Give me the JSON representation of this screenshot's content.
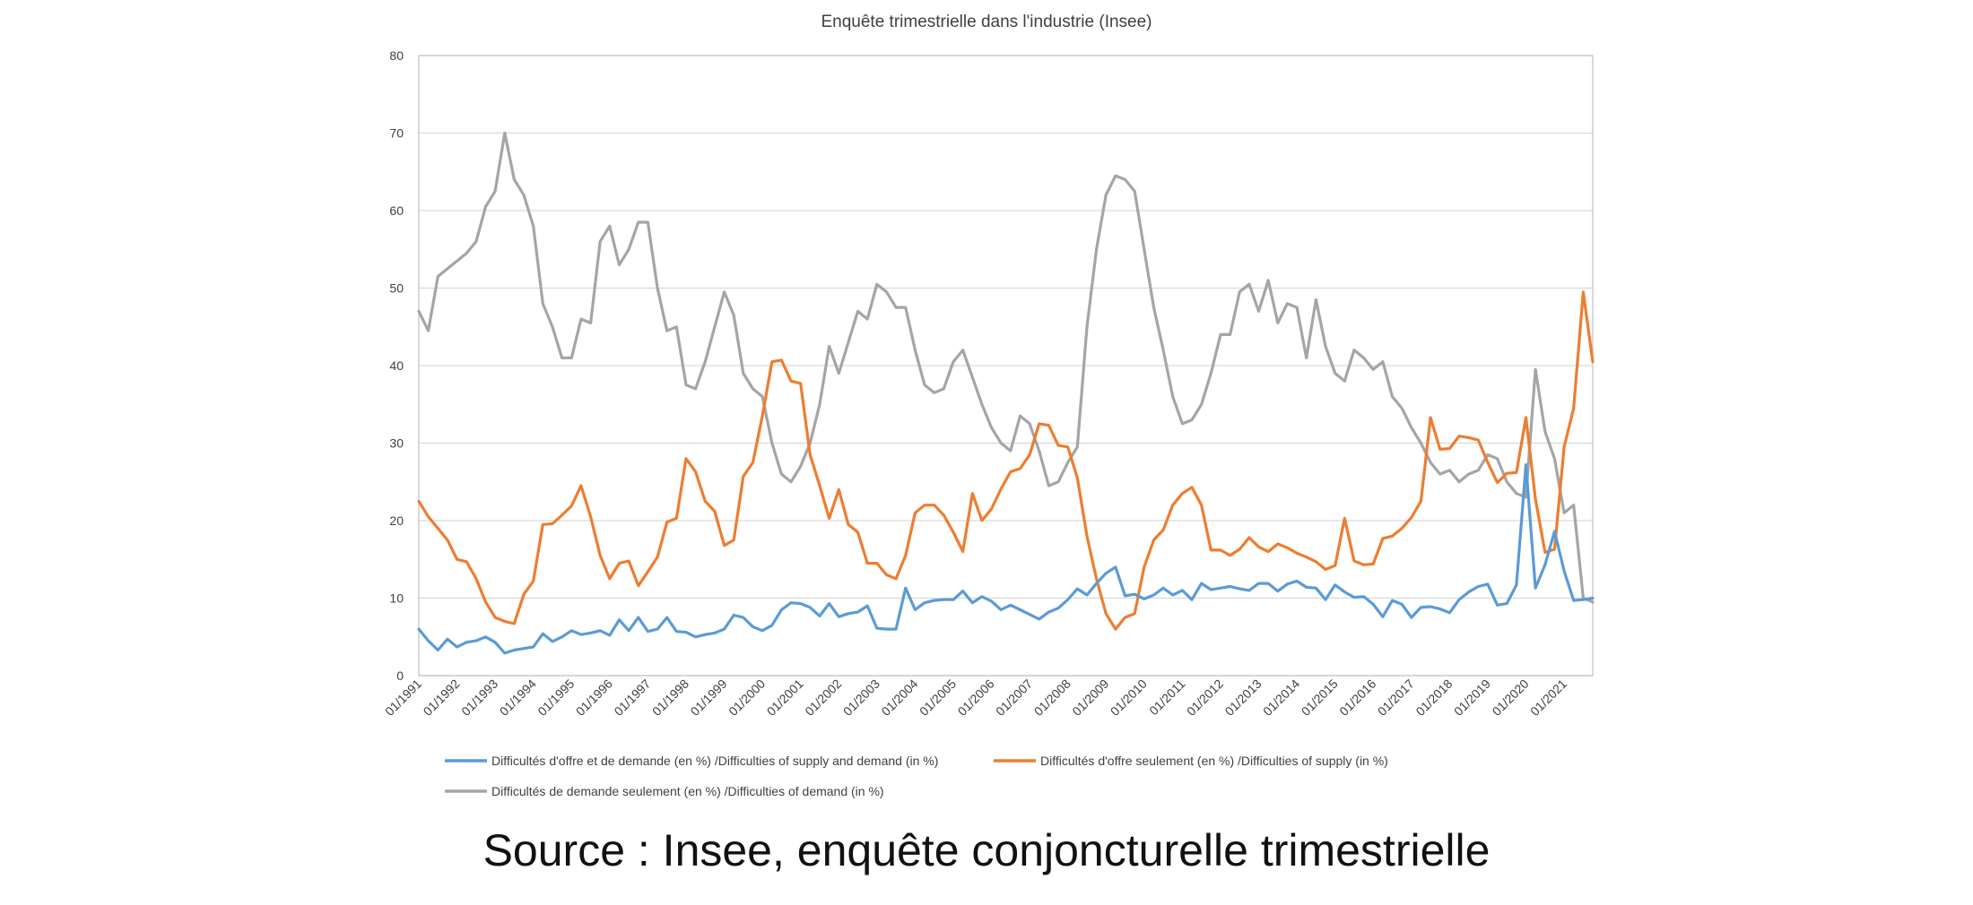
{
  "source_caption": "Source : Insee, enquête conjoncturelle trimestrielle",
  "chart_data": {
    "type": "line",
    "title": "Enquête trimestrielle dans l'industrie (Insee)",
    "xlabel": "",
    "ylabel": "",
    "ylim": [
      0,
      80
    ],
    "y_ticks": [
      0,
      10,
      20,
      30,
      40,
      50,
      60,
      70,
      80
    ],
    "grid": "horizontal",
    "legend_position": "bottom",
    "x_start": "01/1991",
    "x_step": "quarterly",
    "x_tick_labels": [
      "01/1991",
      "01/1992",
      "01/1993",
      "01/1994",
      "01/1995",
      "01/1996",
      "01/1997",
      "01/1998",
      "01/1999",
      "01/2000",
      "01/2001",
      "01/2002",
      "01/2003",
      "01/2004",
      "01/2005",
      "01/2006",
      "01/2007",
      "01/2008",
      "01/2009",
      "01/2010",
      "01/2011",
      "01/2012",
      "01/2013",
      "01/2014",
      "01/2015",
      "01/2016",
      "01/2017",
      "01/2018",
      "01/2019",
      "01/2020",
      "01/2021"
    ],
    "series": [
      {
        "name": "Difficultés d'offre et de demande (en %) /Difficulties of supply and demand (in %)",
        "color": "#5b9bd5",
        "values": [
          6,
          4.5,
          3.3,
          4.7,
          3.7,
          4.3,
          4.5,
          5,
          4.3,
          2.9,
          3.3,
          3.5,
          3.7,
          5.4,
          4.4,
          5,
          5.8,
          5.3,
          5.5,
          5.8,
          5.2,
          7.2,
          5.8,
          7.5,
          5.7,
          6,
          7.5,
          5.7,
          5.6,
          5,
          5.3,
          5.5,
          6,
          7.8,
          7.5,
          6.3,
          5.8,
          6.5,
          8.5,
          9.4,
          9.3,
          8.8,
          7.7,
          9.3,
          7.6,
          8,
          8.2,
          9,
          6.1,
          6,
          6,
          11.3,
          8.5,
          9.4,
          9.7,
          9.8,
          9.8,
          10.9,
          9.4,
          10.2,
          9.6,
          8.5,
          9.1,
          8.5,
          7.9,
          7.3,
          8.2,
          8.7,
          9.8,
          11.2,
          10.4,
          11.9,
          13.2,
          14,
          10.3,
          10.5,
          9.9,
          10.4,
          11.3,
          10.4,
          11,
          9.8,
          11.9,
          11.1,
          11.3,
          11.5,
          11.2,
          11,
          11.9,
          11.9,
          10.9,
          11.8,
          12.2,
          11.4,
          11.3,
          9.8,
          11.7,
          10.8,
          10.1,
          10.2,
          9.2,
          7.6,
          9.7,
          9.2,
          7.5,
          8.8,
          8.9,
          8.6,
          8.1,
          9.8,
          10.8,
          11.5,
          11.8,
          9.1,
          9.3,
          11.7,
          27.2,
          11.3,
          14.3,
          18.6,
          13.5,
          9.7,
          9.8,
          10
        ],
        "label": "Difficultés d'offre et de demande (en %) /Difficulties of supply and demand (in %)"
      },
      {
        "name": "Difficultés d'offre seulement (en %) /Difficulties of supply (in %)",
        "color": "#ed7d31",
        "values": [
          22.5,
          20.5,
          19,
          17.5,
          15,
          14.7,
          12.5,
          9.5,
          7.5,
          7,
          6.7,
          10.5,
          12.2,
          19.5,
          19.6,
          20.7,
          21.9,
          24.5,
          20.5,
          15.5,
          12.5,
          14.5,
          14.8,
          11.6,
          13.4,
          15.3,
          19.8,
          20.3,
          28,
          26.3,
          22.5,
          21.2,
          16.8,
          17.5,
          25.7,
          27.5,
          33.5,
          40.5,
          40.7,
          38,
          37.7,
          28.5,
          24.5,
          20.3,
          24,
          19.5,
          18.5,
          14.5,
          14.5,
          13,
          12.5,
          15.5,
          21,
          22,
          22,
          20.7,
          18.5,
          16,
          23.5,
          20,
          21.5,
          24.1,
          26.3,
          26.7,
          28.5,
          32.5,
          32.3,
          29.7,
          29.5,
          25.5,
          18,
          12.5,
          8,
          6,
          7.5,
          8,
          14,
          17.5,
          18.8,
          22,
          23.5,
          24.3,
          22,
          16.2,
          16.2,
          15.5,
          16.3,
          17.8,
          16.6,
          16,
          17,
          16.5,
          15.8,
          15.3,
          14.7,
          13.7,
          14.2,
          20.3,
          14.8,
          14.3,
          14.4,
          17.7,
          18,
          19,
          20.4,
          22.5,
          33.3,
          29.2,
          29.3,
          30.9,
          30.7,
          30.4,
          27.5,
          24.9,
          26.1,
          26.2,
          33.3,
          22.8,
          15.9,
          16.3,
          29.5,
          34.5,
          49.5,
          40.5
        ],
        "label": "Difficultés d'offre seulement (en %) /Difficulties of supply (in %)"
      },
      {
        "name": "Difficultés de demande seulement (en %) /Difficulties of demand (in %)",
        "color": "#a5a5a5",
        "values": [
          47,
          44.5,
          51.5,
          52.5,
          53.5,
          54.5,
          56,
          60.5,
          62.5,
          70,
          64,
          62,
          58,
          48,
          45,
          41,
          41,
          46,
          45.5,
          56,
          58,
          53,
          55,
          58.5,
          58.5,
          50,
          44.5,
          45,
          37.5,
          37,
          40.5,
          45,
          49.5,
          46.5,
          39,
          37,
          36,
          30,
          26,
          25,
          27,
          30,
          35,
          42.5,
          39,
          43,
          47,
          46,
          50.5,
          49.5,
          47.5,
          47.5,
          42,
          37.5,
          36.5,
          37,
          40.5,
          42,
          38.5,
          35,
          32,
          30,
          29,
          33.5,
          32.5,
          29,
          24.5,
          25,
          27.5,
          29.5,
          45,
          55,
          62,
          64.5,
          64,
          62.5,
          55,
          47.5,
          42,
          36,
          32.5,
          33,
          35,
          39,
          44,
          44,
          49.5,
          50.5,
          47,
          51,
          45.5,
          48,
          47.5,
          41,
          48.5,
          42.5,
          39,
          38,
          42,
          41,
          39.5,
          40.5,
          36,
          34.5,
          32,
          30,
          27.5,
          26,
          26.5,
          25,
          26,
          26.5,
          28.5,
          28,
          25,
          23.5,
          23,
          39.5,
          31.5,
          28,
          21,
          22,
          10,
          9.5
        ],
        "label": "Difficultés de demande seulement (en %) /Difficulties of demand (in %)"
      }
    ]
  }
}
